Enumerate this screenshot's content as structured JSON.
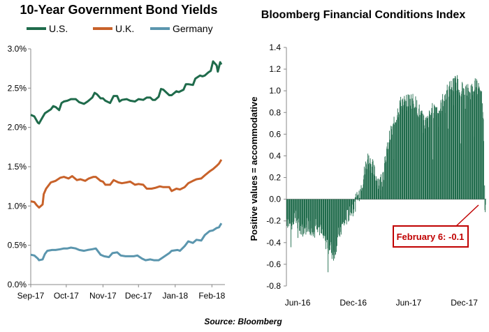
{
  "source": "Source: Bloomberg",
  "chart_data": [
    {
      "type": "line",
      "title": "10-Year Government Bond Yields",
      "xlabel": "",
      "ylabel": "",
      "ylim": [
        0,
        3.0
      ],
      "yticks": [
        "0.0%",
        "0.5%",
        "1.0%",
        "1.5%",
        "2.0%",
        "2.5%",
        "3.0%"
      ],
      "xticks": [
        "Sep-17",
        "Oct-17",
        "Nov-17",
        "Dec-17",
        "Jan-18",
        "Feb-18"
      ],
      "x_start": "2017-09-01",
      "x_end": "2018-02-12",
      "legend_position": "top",
      "grid": false,
      "series": [
        {
          "name": "U.S.",
          "color": "#1f6b4b",
          "points": [
            [
              "2017-09-01",
              2.16
            ],
            [
              "2017-09-04",
              2.14
            ],
            [
              "2017-09-07",
              2.06
            ],
            [
              "2017-09-08",
              2.05
            ],
            [
              "2017-09-11",
              2.13
            ],
            [
              "2017-09-13",
              2.18
            ],
            [
              "2017-09-15",
              2.2
            ],
            [
              "2017-09-18",
              2.23
            ],
            [
              "2017-09-20",
              2.27
            ],
            [
              "2017-09-22",
              2.26
            ],
            [
              "2017-09-25",
              2.22
            ],
            [
              "2017-09-27",
              2.31
            ],
            [
              "2017-09-29",
              2.33
            ],
            [
              "2017-10-02",
              2.34
            ],
            [
              "2017-10-05",
              2.36
            ],
            [
              "2017-10-09",
              2.36
            ],
            [
              "2017-10-12",
              2.32
            ],
            [
              "2017-10-16",
              2.3
            ],
            [
              "2017-10-19",
              2.33
            ],
            [
              "2017-10-23",
              2.38
            ],
            [
              "2017-10-25",
              2.44
            ],
            [
              "2017-10-27",
              2.42
            ],
            [
              "2017-10-30",
              2.37
            ],
            [
              "2017-11-01",
              2.37
            ],
            [
              "2017-11-03",
              2.34
            ],
            [
              "2017-11-07",
              2.31
            ],
            [
              "2017-11-10",
              2.4
            ],
            [
              "2017-11-13",
              2.4
            ],
            [
              "2017-11-15",
              2.33
            ],
            [
              "2017-11-17",
              2.35
            ],
            [
              "2017-11-21",
              2.36
            ],
            [
              "2017-11-24",
              2.34
            ],
            [
              "2017-11-28",
              2.33
            ],
            [
              "2017-12-01",
              2.36
            ],
            [
              "2017-12-05",
              2.35
            ],
            [
              "2017-12-08",
              2.38
            ],
            [
              "2017-12-11",
              2.38
            ],
            [
              "2017-12-13",
              2.35
            ],
            [
              "2017-12-15",
              2.35
            ],
            [
              "2017-12-18",
              2.39
            ],
            [
              "2017-12-20",
              2.49
            ],
            [
              "2017-12-22",
              2.48
            ],
            [
              "2017-12-27",
              2.41
            ],
            [
              "2017-12-29",
              2.41
            ],
            [
              "2018-01-02",
              2.46
            ],
            [
              "2018-01-04",
              2.45
            ],
            [
              "2018-01-08",
              2.48
            ],
            [
              "2018-01-10",
              2.55
            ],
            [
              "2018-01-12",
              2.55
            ],
            [
              "2018-01-16",
              2.54
            ],
            [
              "2018-01-18",
              2.62
            ],
            [
              "2018-01-22",
              2.66
            ],
            [
              "2018-01-24",
              2.65
            ],
            [
              "2018-01-26",
              2.66
            ],
            [
              "2018-01-29",
              2.7
            ],
            [
              "2018-01-31",
              2.72
            ],
            [
              "2018-02-02",
              2.84
            ],
            [
              "2018-02-05",
              2.79
            ],
            [
              "2018-02-06",
              2.71
            ],
            [
              "2018-02-08",
              2.83
            ],
            [
              "2018-02-09",
              2.8
            ]
          ]
        },
        {
          "name": "U.K.",
          "color": "#c8622a",
          "points": [
            [
              "2017-09-01",
              1.06
            ],
            [
              "2017-09-04",
              1.05
            ],
            [
              "2017-09-06",
              1.01
            ],
            [
              "2017-09-08",
              0.98
            ],
            [
              "2017-09-11",
              1.02
            ],
            [
              "2017-09-12",
              1.15
            ],
            [
              "2017-09-14",
              1.22
            ],
            [
              "2017-09-18",
              1.3
            ],
            [
              "2017-09-20",
              1.31
            ],
            [
              "2017-09-22",
              1.32
            ],
            [
              "2017-09-26",
              1.36
            ],
            [
              "2017-09-29",
              1.37
            ],
            [
              "2017-10-03",
              1.35
            ],
            [
              "2017-10-06",
              1.38
            ],
            [
              "2017-10-10",
              1.33
            ],
            [
              "2017-10-13",
              1.34
            ],
            [
              "2017-10-17",
              1.32
            ],
            [
              "2017-10-20",
              1.35
            ],
            [
              "2017-10-24",
              1.37
            ],
            [
              "2017-10-26",
              1.37
            ],
            [
              "2017-10-30",
              1.32
            ],
            [
              "2017-11-01",
              1.31
            ],
            [
              "2017-11-03",
              1.27
            ],
            [
              "2017-11-07",
              1.27
            ],
            [
              "2017-11-10",
              1.33
            ],
            [
              "2017-11-14",
              1.3
            ],
            [
              "2017-11-17",
              1.29
            ],
            [
              "2017-11-21",
              1.3
            ],
            [
              "2017-11-24",
              1.31
            ],
            [
              "2017-11-28",
              1.27
            ],
            [
              "2017-12-01",
              1.28
            ],
            [
              "2017-12-05",
              1.27
            ],
            [
              "2017-12-08",
              1.22
            ],
            [
              "2017-12-12",
              1.22
            ],
            [
              "2017-12-15",
              1.23
            ],
            [
              "2017-12-19",
              1.25
            ],
            [
              "2017-12-22",
              1.24
            ],
            [
              "2017-12-27",
              1.24
            ],
            [
              "2017-12-29",
              1.19
            ],
            [
              "2018-01-02",
              1.22
            ],
            [
              "2018-01-05",
              1.21
            ],
            [
              "2018-01-09",
              1.24
            ],
            [
              "2018-01-12",
              1.29
            ],
            [
              "2018-01-16",
              1.32
            ],
            [
              "2018-01-19",
              1.34
            ],
            [
              "2018-01-23",
              1.35
            ],
            [
              "2018-01-26",
              1.39
            ],
            [
              "2018-01-30",
              1.44
            ],
            [
              "2018-02-02",
              1.47
            ],
            [
              "2018-02-05",
              1.51
            ],
            [
              "2018-02-07",
              1.54
            ],
            [
              "2018-02-09",
              1.59
            ]
          ]
        },
        {
          "name": "Germany",
          "color": "#5b96ae",
          "points": [
            [
              "2017-09-01",
              0.38
            ],
            [
              "2017-09-04",
              0.37
            ],
            [
              "2017-09-07",
              0.33
            ],
            [
              "2017-09-08",
              0.31
            ],
            [
              "2017-09-11",
              0.32
            ],
            [
              "2017-09-13",
              0.39
            ],
            [
              "2017-09-15",
              0.43
            ],
            [
              "2017-09-19",
              0.44
            ],
            [
              "2017-09-22",
              0.44
            ],
            [
              "2017-09-26",
              0.45
            ],
            [
              "2017-09-29",
              0.46
            ],
            [
              "2017-10-02",
              0.46
            ],
            [
              "2017-10-05",
              0.47
            ],
            [
              "2017-10-09",
              0.46
            ],
            [
              "2017-10-12",
              0.44
            ],
            [
              "2017-10-16",
              0.43
            ],
            [
              "2017-10-19",
              0.44
            ],
            [
              "2017-10-23",
              0.45
            ],
            [
              "2017-10-26",
              0.46
            ],
            [
              "2017-10-30",
              0.38
            ],
            [
              "2017-11-02",
              0.36
            ],
            [
              "2017-11-06",
              0.35
            ],
            [
              "2017-11-09",
              0.4
            ],
            [
              "2017-11-13",
              0.41
            ],
            [
              "2017-11-16",
              0.37
            ],
            [
              "2017-11-20",
              0.36
            ],
            [
              "2017-11-23",
              0.36
            ],
            [
              "2017-11-27",
              0.36
            ],
            [
              "2017-11-30",
              0.37
            ],
            [
              "2017-12-04",
              0.33
            ],
            [
              "2017-12-07",
              0.31
            ],
            [
              "2017-12-11",
              0.32
            ],
            [
              "2017-12-14",
              0.31
            ],
            [
              "2017-12-18",
              0.31
            ],
            [
              "2017-12-21",
              0.34
            ],
            [
              "2017-12-27",
              0.4
            ],
            [
              "2017-12-29",
              0.43
            ],
            [
              "2018-01-03",
              0.44
            ],
            [
              "2018-01-05",
              0.43
            ],
            [
              "2018-01-09",
              0.49
            ],
            [
              "2018-01-12",
              0.55
            ],
            [
              "2018-01-16",
              0.53
            ],
            [
              "2018-01-19",
              0.57
            ],
            [
              "2018-01-23",
              0.56
            ],
            [
              "2018-01-26",
              0.63
            ],
            [
              "2018-01-30",
              0.68
            ],
            [
              "2018-02-02",
              0.69
            ],
            [
              "2018-02-05",
              0.72
            ],
            [
              "2018-02-07",
              0.73
            ],
            [
              "2018-02-09",
              0.78
            ]
          ]
        }
      ]
    },
    {
      "type": "bar",
      "title": "Bloomberg Financial Conditions Index",
      "xlabel": "",
      "ylabel": "Positive values = accommodative",
      "ylim": [
        -0.8,
        1.4
      ],
      "yticks": [
        "-0.8",
        "-0.6",
        "-0.4",
        "-0.2",
        "0.0",
        "0.2",
        "0.4",
        "0.6",
        "0.8",
        "1.0",
        "1.2",
        "1.4"
      ],
      "xticks": [
        "Jun-16",
        "Dec-16",
        "Jun-17",
        "Dec-17"
      ],
      "x_start": "2016-04-25",
      "x_end": "2018-02-09",
      "color": "#1f6b4b",
      "grid": false,
      "annotation": "February 6: -0.1",
      "anchors": [
        [
          "2016-04-25",
          -0.18
        ],
        [
          "2016-05-09",
          -0.25
        ],
        [
          "2016-05-23",
          -0.15
        ],
        [
          "2016-06-06",
          -0.28
        ],
        [
          "2016-06-20",
          -0.3
        ],
        [
          "2016-07-04",
          -0.22
        ],
        [
          "2016-07-18",
          -0.28
        ],
        [
          "2016-08-01",
          -0.2
        ],
        [
          "2016-08-15",
          -0.3
        ],
        [
          "2016-08-29",
          -0.38
        ],
        [
          "2016-09-12",
          -0.42
        ],
        [
          "2016-09-26",
          -0.52
        ],
        [
          "2016-10-10",
          -0.35
        ],
        [
          "2016-10-24",
          -0.25
        ],
        [
          "2016-11-07",
          -0.18
        ],
        [
          "2016-11-21",
          -0.1
        ],
        [
          "2016-12-05",
          -0.05
        ],
        [
          "2016-12-19",
          0.05
        ],
        [
          "2017-01-02",
          0.2
        ],
        [
          "2017-01-16",
          0.38
        ],
        [
          "2017-01-30",
          0.32
        ],
        [
          "2017-02-13",
          0.2
        ],
        [
          "2017-02-27",
          0.15
        ],
        [
          "2017-03-13",
          0.3
        ],
        [
          "2017-03-27",
          0.55
        ],
        [
          "2017-04-10",
          0.65
        ],
        [
          "2017-04-24",
          0.8
        ],
        [
          "2017-05-08",
          0.9
        ],
        [
          "2017-05-22",
          0.88
        ],
        [
          "2017-06-05",
          0.92
        ],
        [
          "2017-06-19",
          0.9
        ],
        [
          "2017-07-03",
          0.82
        ],
        [
          "2017-07-17",
          0.72
        ],
        [
          "2017-07-31",
          0.7
        ],
        [
          "2017-08-14",
          0.8
        ],
        [
          "2017-08-28",
          0.85
        ],
        [
          "2017-09-11",
          0.82
        ],
        [
          "2017-09-25",
          0.95
        ],
        [
          "2017-10-09",
          1.0
        ],
        [
          "2017-10-23",
          1.05
        ],
        [
          "2017-11-06",
          1.08
        ],
        [
          "2017-11-20",
          1.02
        ],
        [
          "2017-12-04",
          1.0
        ],
        [
          "2017-12-18",
          0.98
        ],
        [
          "2018-01-01",
          1.05
        ],
        [
          "2018-01-15",
          1.02
        ],
        [
          "2018-01-29",
          0.9
        ],
        [
          "2018-02-02",
          0.6
        ],
        [
          "2018-02-06",
          -0.1
        ],
        [
          "2018-02-09",
          0.05
        ]
      ]
    }
  ]
}
